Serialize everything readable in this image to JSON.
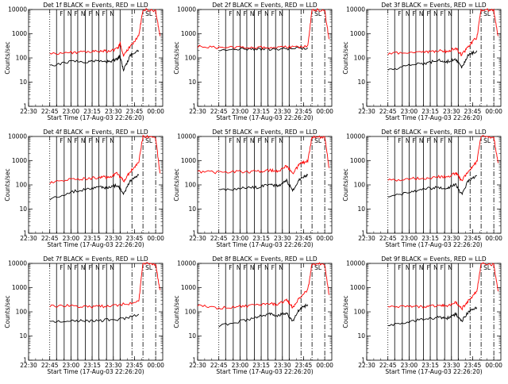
{
  "chart_data": [
    {
      "type": "line",
      "title": "Det 1f BLACK = Events, RED = LLD",
      "xlabel": "Start Time (17-Aug-03 22:26:20)",
      "ylabel": "Counts/sec",
      "yscale": "log",
      "ylim": [
        1,
        10000
      ],
      "xlim": [
        22.5,
        24.083
      ],
      "xticks": [
        "22:30",
        "22:45",
        "23:00",
        "23:15",
        "23:30",
        "23:45",
        "00:00"
      ],
      "yticks": [
        "1",
        "10",
        "100",
        "1000",
        "10000"
      ],
      "annotations": [
        "F",
        "N",
        "F",
        "N",
        "F",
        "N",
        "F",
        "N",
        "SL"
      ],
      "series": [
        {
          "name": "Events",
          "color": "#000000",
          "x": [
            22.75,
            23.0,
            23.2,
            23.35,
            23.45,
            23.55,
            23.58,
            23.62,
            23.7,
            23.8
          ],
          "y": [
            45,
            70,
            70,
            80,
            70,
            90,
            120,
            30,
            130,
            200
          ]
        },
        {
          "name": "LLD",
          "color": "#ff0000",
          "x": [
            22.75,
            23.0,
            23.2,
            23.35,
            23.45,
            23.55,
            23.58,
            23.62,
            23.7,
            23.8,
            23.85,
            24.0,
            24.05
          ],
          "y": [
            150,
            170,
            170,
            200,
            180,
            250,
            400,
            120,
            300,
            800,
            10000,
            9000,
            800
          ]
        }
      ]
    },
    {
      "type": "line",
      "title": "Det 2f BLACK = Events, RED = LLD",
      "xlabel": "Start Time (17-Aug-03 22:26:20)",
      "ylabel": "Counts/sec",
      "yscale": "log",
      "ylim": [
        1,
        10000
      ],
      "xlim": [
        22.5,
        24.083
      ],
      "xticks": [
        "22:30",
        "22:45",
        "23:00",
        "23:15",
        "23:30",
        "23:45",
        "00:00"
      ],
      "yticks": [
        "1",
        "10",
        "100",
        "1000",
        "10000"
      ],
      "annotations": [
        "F",
        "N",
        "F",
        "N",
        "F",
        "N",
        "F",
        "N",
        "SL"
      ],
      "series": [
        {
          "name": "Events",
          "color": "#000000",
          "x": [
            22.75,
            23.0,
            23.2,
            23.4,
            23.6,
            23.8
          ],
          "y": [
            220,
            240,
            230,
            230,
            240,
            260
          ]
        },
        {
          "name": "LLD",
          "color": "#ff0000",
          "x": [
            22.5,
            22.75,
            23.0,
            23.2,
            23.4,
            23.6,
            23.8,
            23.85,
            24.0,
            24.05
          ],
          "y": [
            300,
            260,
            280,
            270,
            270,
            280,
            300,
            10000,
            9000,
            600
          ]
        }
      ]
    },
    {
      "type": "line",
      "title": "Det 3f BLACK = Events, RED = LLD",
      "xlabel": "Start Time (17-Aug-03 22:26:20)",
      "ylabel": "Counts/sec",
      "yscale": "log",
      "ylim": [
        1,
        10000
      ],
      "xlim": [
        22.5,
        24.083
      ],
      "xticks": [
        "22:30",
        "22:45",
        "23:00",
        "23:15",
        "23:30",
        "23:45",
        "00:00"
      ],
      "yticks": [
        "1",
        "10",
        "100",
        "1000",
        "10000"
      ],
      "annotations": [
        "F",
        "N",
        "F",
        "N",
        "F",
        "N",
        "F",
        "N",
        "SL"
      ],
      "series": [
        {
          "name": "Events",
          "color": "#000000",
          "x": [
            22.75,
            23.0,
            23.2,
            23.35,
            23.45,
            23.55,
            23.62,
            23.7,
            23.8
          ],
          "y": [
            30,
            50,
            60,
            80,
            70,
            90,
            40,
            130,
            200
          ]
        },
        {
          "name": "LLD",
          "color": "#ff0000",
          "x": [
            22.75,
            23.0,
            23.2,
            23.35,
            23.45,
            23.55,
            23.62,
            23.7,
            23.8,
            23.85,
            24.0,
            24.05
          ],
          "y": [
            150,
            170,
            170,
            200,
            180,
            260,
            130,
            300,
            700,
            10000,
            9000,
            800
          ]
        }
      ]
    },
    {
      "type": "line",
      "title": "Det 4f BLACK = Events, RED = LLD",
      "xlabel": "Start Time (17-Aug-03 22:26:20)",
      "ylabel": "Counts/sec",
      "yscale": "log",
      "ylim": [
        1,
        10000
      ],
      "xlim": [
        22.5,
        24.083
      ],
      "xticks": [
        "22:30",
        "22:45",
        "23:00",
        "23:15",
        "23:30",
        "23:45",
        "00:00"
      ],
      "yticks": [
        "1",
        "10",
        "100",
        "1000",
        "10000"
      ],
      "annotations": [
        "F",
        "N",
        "F",
        "N",
        "F",
        "N",
        "F",
        "N",
        "SL"
      ],
      "series": [
        {
          "name": "Events",
          "color": "#000000",
          "x": [
            22.75,
            23.0,
            23.2,
            23.35,
            23.45,
            23.55,
            23.62,
            23.7,
            23.8
          ],
          "y": [
            25,
            50,
            70,
            80,
            75,
            100,
            40,
            150,
            250
          ]
        },
        {
          "name": "LLD",
          "color": "#ff0000",
          "x": [
            22.75,
            23.0,
            23.2,
            23.35,
            23.45,
            23.55,
            23.62,
            23.7,
            23.8,
            23.85,
            24.0,
            24.05
          ],
          "y": [
            120,
            170,
            180,
            210,
            200,
            300,
            140,
            350,
            900,
            10000,
            9000,
            300
          ]
        }
      ]
    },
    {
      "type": "line",
      "title": "Det 5f BLACK = Events, RED = LLD",
      "xlabel": "Start Time (17-Aug-03 22:26:20)",
      "ylabel": "Counts/sec",
      "yscale": "log",
      "ylim": [
        1,
        10000
      ],
      "xlim": [
        22.5,
        24.083
      ],
      "xticks": [
        "22:30",
        "22:45",
        "23:00",
        "23:15",
        "23:30",
        "23:45",
        "00:00"
      ],
      "yticks": [
        "1",
        "10",
        "100",
        "1000",
        "10000"
      ],
      "annotations": [
        "F",
        "N",
        "F",
        "N",
        "F",
        "N",
        "F",
        "N",
        "SL"
      ],
      "series": [
        {
          "name": "Events",
          "color": "#000000",
          "x": [
            22.75,
            23.0,
            23.2,
            23.35,
            23.45,
            23.55,
            23.62,
            23.7,
            23.8
          ],
          "y": [
            60,
            70,
            80,
            100,
            90,
            150,
            60,
            170,
            250
          ]
        },
        {
          "name": "LLD",
          "color": "#ff0000",
          "x": [
            22.5,
            22.75,
            23.0,
            23.2,
            23.35,
            23.45,
            23.55,
            23.62,
            23.7,
            23.8,
            23.85,
            24.0,
            24.05
          ],
          "y": [
            350,
            330,
            350,
            360,
            400,
            380,
            600,
            300,
            700,
            1000,
            10000,
            9000,
            500
          ]
        }
      ]
    },
    {
      "type": "line",
      "title": "Det 6f BLACK = Events, RED = LLD",
      "xlabel": "Start Time (17-Aug-03 22:26:20)",
      "ylabel": "Counts/sec",
      "yscale": "log",
      "ylim": [
        1,
        10000
      ],
      "xlim": [
        22.5,
        24.083
      ],
      "xticks": [
        "22:30",
        "22:45",
        "23:00",
        "23:15",
        "23:30",
        "23:45",
        "00:00"
      ],
      "yticks": [
        "1",
        "10",
        "100",
        "1000",
        "10000"
      ],
      "annotations": [
        "F",
        "N",
        "F",
        "N",
        "F",
        "N",
        "F",
        "N",
        "SL"
      ],
      "series": [
        {
          "name": "Events",
          "color": "#000000",
          "x": [
            22.75,
            23.0,
            23.2,
            23.35,
            23.45,
            23.55,
            23.62,
            23.7,
            23.8
          ],
          "y": [
            30,
            50,
            70,
            80,
            75,
            100,
            40,
            150,
            250
          ]
        },
        {
          "name": "LLD",
          "color": "#ff0000",
          "x": [
            22.75,
            23.0,
            23.2,
            23.35,
            23.45,
            23.55,
            23.62,
            23.7,
            23.8,
            23.85,
            24.0,
            24.05
          ],
          "y": [
            150,
            180,
            190,
            220,
            210,
            320,
            150,
            380,
            900,
            10000,
            9000,
            800
          ]
        }
      ]
    },
    {
      "type": "line",
      "title": "Det 7f BLACK = Events, RED = LLD",
      "xlabel": "Start Time (17-Aug-03 22:26:20)",
      "ylabel": "Counts/sec",
      "yscale": "log",
      "ylim": [
        1,
        10000
      ],
      "xlim": [
        22.5,
        24.083
      ],
      "xticks": [
        "22:30",
        "22:45",
        "23:00",
        "23:15",
        "23:30",
        "23:45",
        "00:00"
      ],
      "yticks": [
        "1",
        "10",
        "100",
        "1000",
        "10000"
      ],
      "annotations": [
        "F",
        "N",
        "F",
        "N",
        "F",
        "N",
        "F",
        "N",
        "SL"
      ],
      "series": [
        {
          "name": "Events",
          "color": "#000000",
          "x": [
            22.75,
            23.0,
            23.2,
            23.4,
            23.6,
            23.8
          ],
          "y": [
            40,
            45,
            40,
            45,
            50,
            80
          ]
        },
        {
          "name": "LLD",
          "color": "#ff0000",
          "x": [
            22.75,
            23.0,
            23.2,
            23.4,
            23.6,
            23.8,
            23.85,
            24.0,
            24.05
          ],
          "y": [
            170,
            180,
            160,
            170,
            200,
            260,
            10000,
            9000,
            800
          ]
        }
      ]
    },
    {
      "type": "line",
      "title": "Det 8f BLACK = Events, RED = LLD",
      "xlabel": "Start Time (17-Aug-03 22:26:20)",
      "ylabel": "Counts/sec",
      "yscale": "log",
      "ylim": [
        1,
        10000
      ],
      "xlim": [
        22.5,
        24.083
      ],
      "xticks": [
        "22:30",
        "22:45",
        "23:00",
        "23:15",
        "23:30",
        "23:45",
        "00:00"
      ],
      "yticks": [
        "1",
        "10",
        "100",
        "1000",
        "10000"
      ],
      "annotations": [
        "F",
        "N",
        "F",
        "N",
        "F",
        "N",
        "F",
        "N",
        "SL"
      ],
      "series": [
        {
          "name": "Events",
          "color": "#000000",
          "x": [
            22.75,
            23.0,
            23.2,
            23.35,
            23.45,
            23.55,
            23.62,
            23.7,
            23.8
          ],
          "y": [
            25,
            40,
            60,
            80,
            70,
            90,
            40,
            130,
            200
          ]
        },
        {
          "name": "LLD",
          "color": "#ff0000",
          "x": [
            22.5,
            22.75,
            23.0,
            23.2,
            23.35,
            23.45,
            23.55,
            23.62,
            23.7,
            23.8,
            23.85,
            24.0,
            24.05
          ],
          "y": [
            200,
            140,
            170,
            180,
            220,
            200,
            330,
            150,
            360,
            800,
            10000,
            9000,
            500
          ]
        }
      ]
    },
    {
      "type": "line",
      "title": "Det 9f BLACK = Events, RED = LLD",
      "xlabel": "Start Time (17-Aug-03 22:26:20)",
      "ylabel": "Counts/sec",
      "yscale": "log",
      "ylim": [
        1,
        10000
      ],
      "xlim": [
        22.5,
        24.083
      ],
      "xticks": [
        "22:30",
        "22:45",
        "23:00",
        "23:15",
        "23:30",
        "23:45",
        "00:00"
      ],
      "yticks": [
        "1",
        "10",
        "100",
        "1000",
        "10000"
      ],
      "annotations": [
        "F",
        "N",
        "F",
        "N",
        "F",
        "N",
        "F",
        "N",
        "SL"
      ],
      "series": [
        {
          "name": "Events",
          "color": "#000000",
          "x": [
            22.75,
            23.0,
            23.2,
            23.35,
            23.45,
            23.55,
            23.62,
            23.7,
            23.8
          ],
          "y": [
            25,
            40,
            50,
            60,
            55,
            80,
            40,
            100,
            150
          ]
        },
        {
          "name": "LLD",
          "color": "#ff0000",
          "x": [
            22.75,
            23.0,
            23.2,
            23.35,
            23.45,
            23.55,
            23.62,
            23.7,
            23.8,
            23.85,
            24.0,
            24.05
          ],
          "y": [
            150,
            170,
            160,
            190,
            180,
            250,
            130,
            300,
            700,
            10000,
            9000,
            700
          ]
        }
      ]
    }
  ],
  "overlays": {
    "dotted_x": [
      22.75
    ],
    "solid_x": [
      22.83,
      22.92,
      23.0,
      23.08,
      23.17,
      23.25,
      23.33,
      23.42,
      23.5,
      23.58
    ],
    "dashed_x": [
      23.72,
      23.85,
      24.0
    ]
  }
}
